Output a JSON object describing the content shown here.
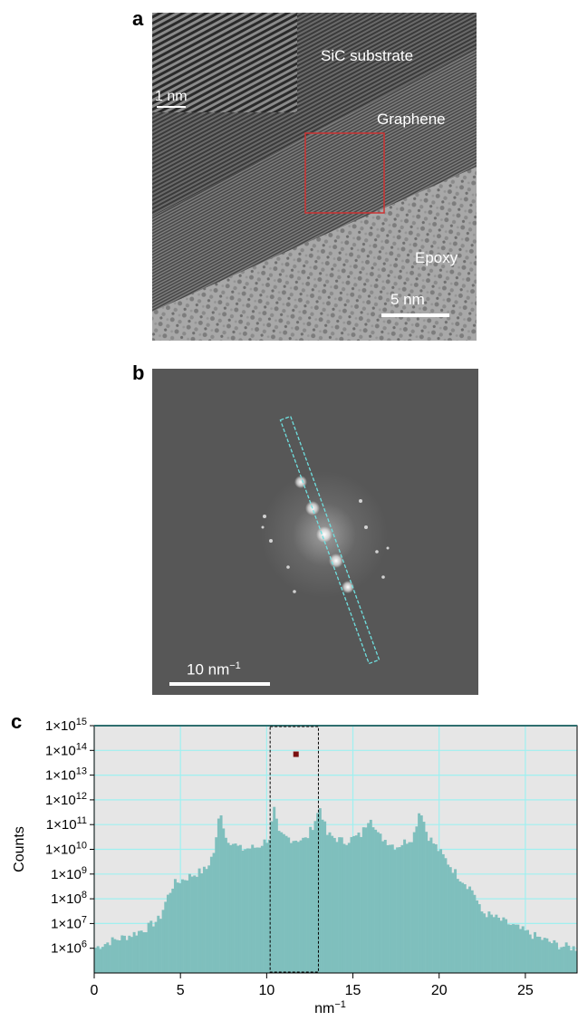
{
  "panels": {
    "a": {
      "letter": "a",
      "labels": {
        "substrate": "SiC substrate",
        "graphene": "Graphene",
        "epoxy": "Epoxy"
      },
      "inset_scale_bar": "1 nm",
      "scale_bar": "5  nm"
    },
    "b": {
      "letter": "b",
      "scale_bar_main": "10 nm",
      "scale_bar_sup": "−1"
    },
    "c": {
      "letter": "c"
    }
  },
  "colors": {
    "histogram_fill": "#7fbfbd",
    "plot_background": "#e6e6e6",
    "grid": "#9ff0f0",
    "roi_box": "#cc3333",
    "profile_box": "#6fe0e0",
    "marker": "#7a0f0f"
  },
  "chart_data": {
    "type": "bar",
    "subtype": "histogram",
    "xlabel": "nm",
    "xlabel_sup": "−1",
    "ylabel": "Counts",
    "xlim": [
      0,
      28
    ],
    "ylim": [
      100000,
      1000000000000000.0
    ],
    "yscale": "log",
    "xticks": [
      0,
      5,
      10,
      15,
      20,
      25
    ],
    "yticks": [
      {
        "value": 1000000.0,
        "label": "1×10",
        "exp": "6"
      },
      {
        "value": 10000000.0,
        "label": "1×10",
        "exp": "7"
      },
      {
        "value": 100000000.0,
        "label": "1×10",
        "exp": "8"
      },
      {
        "value": 1000000000.0,
        "label": "1×10",
        "exp": "9"
      },
      {
        "value": 10000000000.0,
        "label": "1×10",
        "exp": "10"
      },
      {
        "value": 100000000000.0,
        "label": "1×10",
        "exp": "11"
      },
      {
        "value": 1000000000000.0,
        "label": "1×10",
        "exp": "12"
      },
      {
        "value": 10000000000000.0,
        "label": "1×10",
        "exp": "13"
      },
      {
        "value": 100000000000000.0,
        "label": "1×10",
        "exp": "14"
      },
      {
        "value": 1000000000000000.0,
        "label": "1×10",
        "exp": "15"
      }
    ],
    "grid": true,
    "profile": [
      [
        0,
        6.0
      ],
      [
        1,
        6.3
      ],
      [
        2,
        6.5
      ],
      [
        3,
        6.8
      ],
      [
        3.8,
        7.2
      ],
      [
        4.2,
        8.0
      ],
      [
        4.6,
        8.6
      ],
      [
        5.5,
        8.9
      ],
      [
        6.5,
        9.2
      ],
      [
        7.0,
        10.0
      ],
      [
        7.3,
        11.7
      ],
      [
        7.6,
        10.5
      ],
      [
        8.5,
        10.0
      ],
      [
        9.5,
        10.1
      ],
      [
        10.2,
        10.5
      ],
      [
        10.4,
        11.7
      ],
      [
        10.7,
        10.6
      ],
      [
        11.5,
        10.4
      ],
      [
        12.3,
        10.4
      ],
      [
        12.7,
        11.0
      ],
      [
        13.1,
        11.7
      ],
      [
        13.5,
        10.6
      ],
      [
        14.5,
        10.3
      ],
      [
        15.5,
        10.6
      ],
      [
        16.0,
        11.4
      ],
      [
        16.4,
        10.6
      ],
      [
        17.5,
        10.1
      ],
      [
        18.5,
        10.5
      ],
      [
        18.9,
        11.7
      ],
      [
        19.3,
        10.6
      ],
      [
        21.0,
        9.0
      ],
      [
        22.0,
        8.3
      ],
      [
        22.4,
        7.5
      ],
      [
        24.0,
        7.0
      ],
      [
        25.5,
        6.5
      ],
      [
        27.0,
        6.1
      ],
      [
        28.0,
        6.0
      ]
    ],
    "selection_range": [
      10.2,
      13.0
    ],
    "marker": {
      "x": 11.7,
      "y": 70000000000000.0
    }
  }
}
